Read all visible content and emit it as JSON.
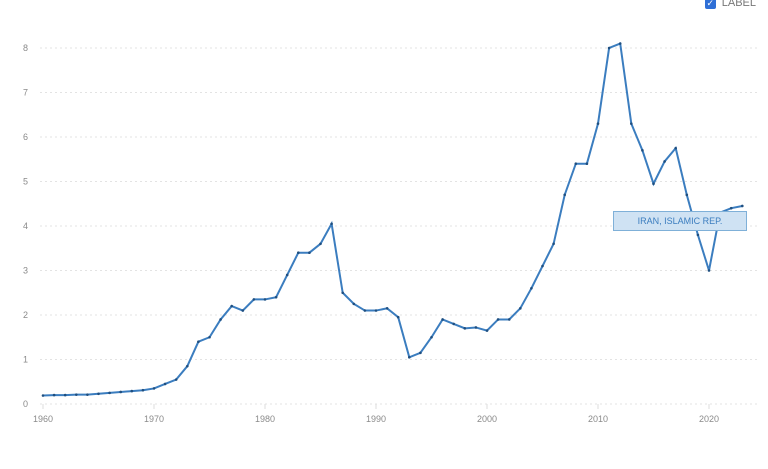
{
  "legend": {
    "label": "LABEL",
    "checked": true
  },
  "chart_data": {
    "type": "line",
    "title": "",
    "xlabel": "",
    "ylabel": "",
    "xlim": [
      1960,
      2023
    ],
    "ylim": [
      0,
      8
    ],
    "grid": true,
    "x_ticks": [
      "1960",
      "1970",
      "1980",
      "1990",
      "2000",
      "2010",
      "2020"
    ],
    "y_ticks": [
      "0",
      "1",
      "2",
      "3",
      "4",
      "5",
      "6",
      "7",
      "8"
    ],
    "color": "#3b7dbf",
    "series": [
      {
        "name": "IRAN, ISLAMIC REP.",
        "x": [
          1960,
          1961,
          1962,
          1963,
          1964,
          1965,
          1966,
          1967,
          1968,
          1969,
          1970,
          1971,
          1972,
          1973,
          1974,
          1975,
          1976,
          1977,
          1978,
          1979,
          1980,
          1981,
          1982,
          1983,
          1984,
          1985,
          1986,
          1987,
          1988,
          1989,
          1990,
          1991,
          1992,
          1993,
          1994,
          1995,
          1996,
          1997,
          1998,
          1999,
          2000,
          2001,
          2002,
          2003,
          2004,
          2005,
          2006,
          2007,
          2008,
          2009,
          2010,
          2011,
          2012,
          2013,
          2014,
          2015,
          2016,
          2017,
          2018,
          2019,
          2020,
          2021,
          2022,
          2023
        ],
        "values": [
          0.19,
          0.2,
          0.2,
          0.21,
          0.21,
          0.23,
          0.25,
          0.27,
          0.29,
          0.31,
          0.35,
          0.45,
          0.55,
          0.85,
          1.4,
          1.5,
          1.9,
          2.2,
          2.1,
          2.35,
          2.35,
          2.4,
          2.9,
          3.4,
          3.4,
          3.6,
          4.05,
          2.5,
          2.25,
          2.1,
          2.1,
          2.15,
          1.95,
          1.05,
          1.15,
          1.5,
          1.9,
          1.8,
          1.7,
          1.72,
          1.65,
          1.9,
          1.9,
          2.15,
          2.6,
          3.1,
          3.6,
          4.7,
          5.4,
          5.4,
          6.3,
          8.0,
          8.1,
          6.3,
          5.7,
          4.95,
          5.45,
          5.75,
          4.7,
          3.8,
          3.0,
          4.3,
          4.4,
          4.45
        ]
      }
    ]
  }
}
